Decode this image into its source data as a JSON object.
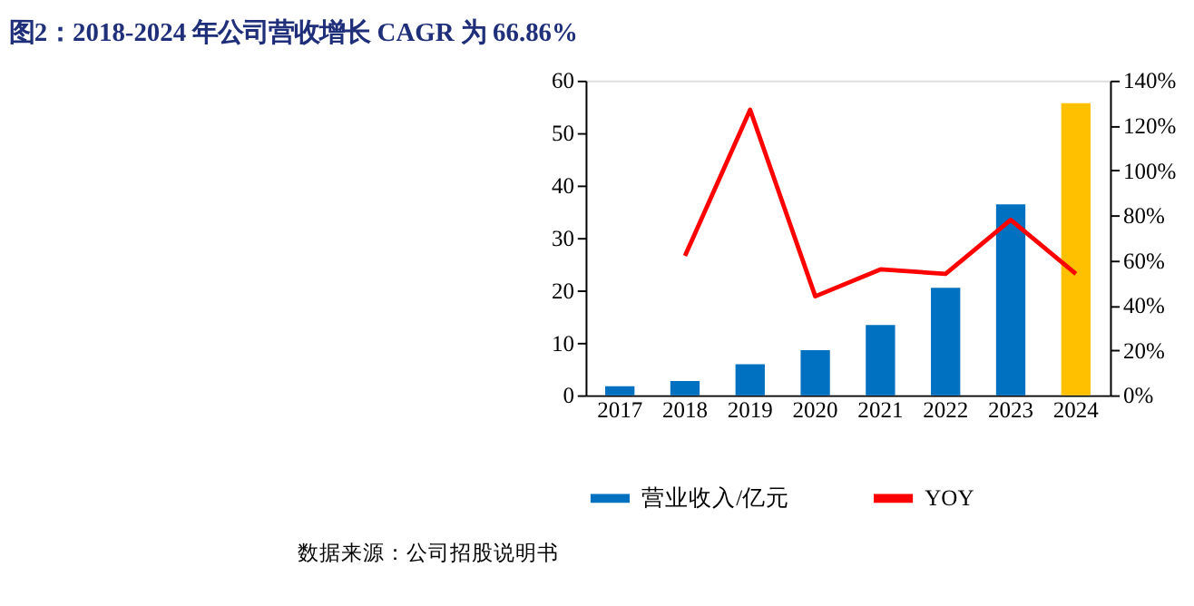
{
  "chart_data": {
    "type": "bar",
    "title": "图2：2018-2024 年公司营收增长  CAGR 为  66.86%",
    "categories": [
      "2017",
      "2018",
      "2019",
      "2020",
      "2021",
      "2022",
      "2023",
      "2024"
    ],
    "series": [
      {
        "name": "营业收入/亿元",
        "color": "#0070c0",
        "colors": [
          "#0070c0",
          "#0070c0",
          "#0070c0",
          "#0070c0",
          "#0070c0",
          "#0070c0",
          "#0070c0",
          "#ffc000"
        ],
        "values": [
          1.7,
          2.7,
          5.9,
          8.6,
          13.4,
          20.5,
          36.4,
          55.7
        ]
      },
      {
        "name": "YOY",
        "type": "line",
        "axis": "y2",
        "color": "#ff0000",
        "values": [
          null,
          62,
          127,
          44,
          56,
          54,
          78,
          54
        ]
      }
    ],
    "ylim": [
      0,
      60
    ],
    "yticks": [
      0,
      10,
      20,
      30,
      40,
      50,
      60
    ],
    "y2lim": [
      0,
      140
    ],
    "y2ticks": [
      {
        "value": 0,
        "label": "0%"
      },
      {
        "value": 20,
        "label": "20%"
      },
      {
        "value": 40,
        "label": "40%"
      },
      {
        "value": 60,
        "label": "60%"
      },
      {
        "value": 80,
        "label": "80%"
      },
      {
        "value": 100,
        "label": "100%"
      },
      {
        "value": 120,
        "label": "120%"
      },
      {
        "value": 140,
        "label": "140%"
      }
    ],
    "legend": "bottom",
    "grid": false,
    "annotations": [
      "数据来源：公司招股说明书"
    ]
  }
}
